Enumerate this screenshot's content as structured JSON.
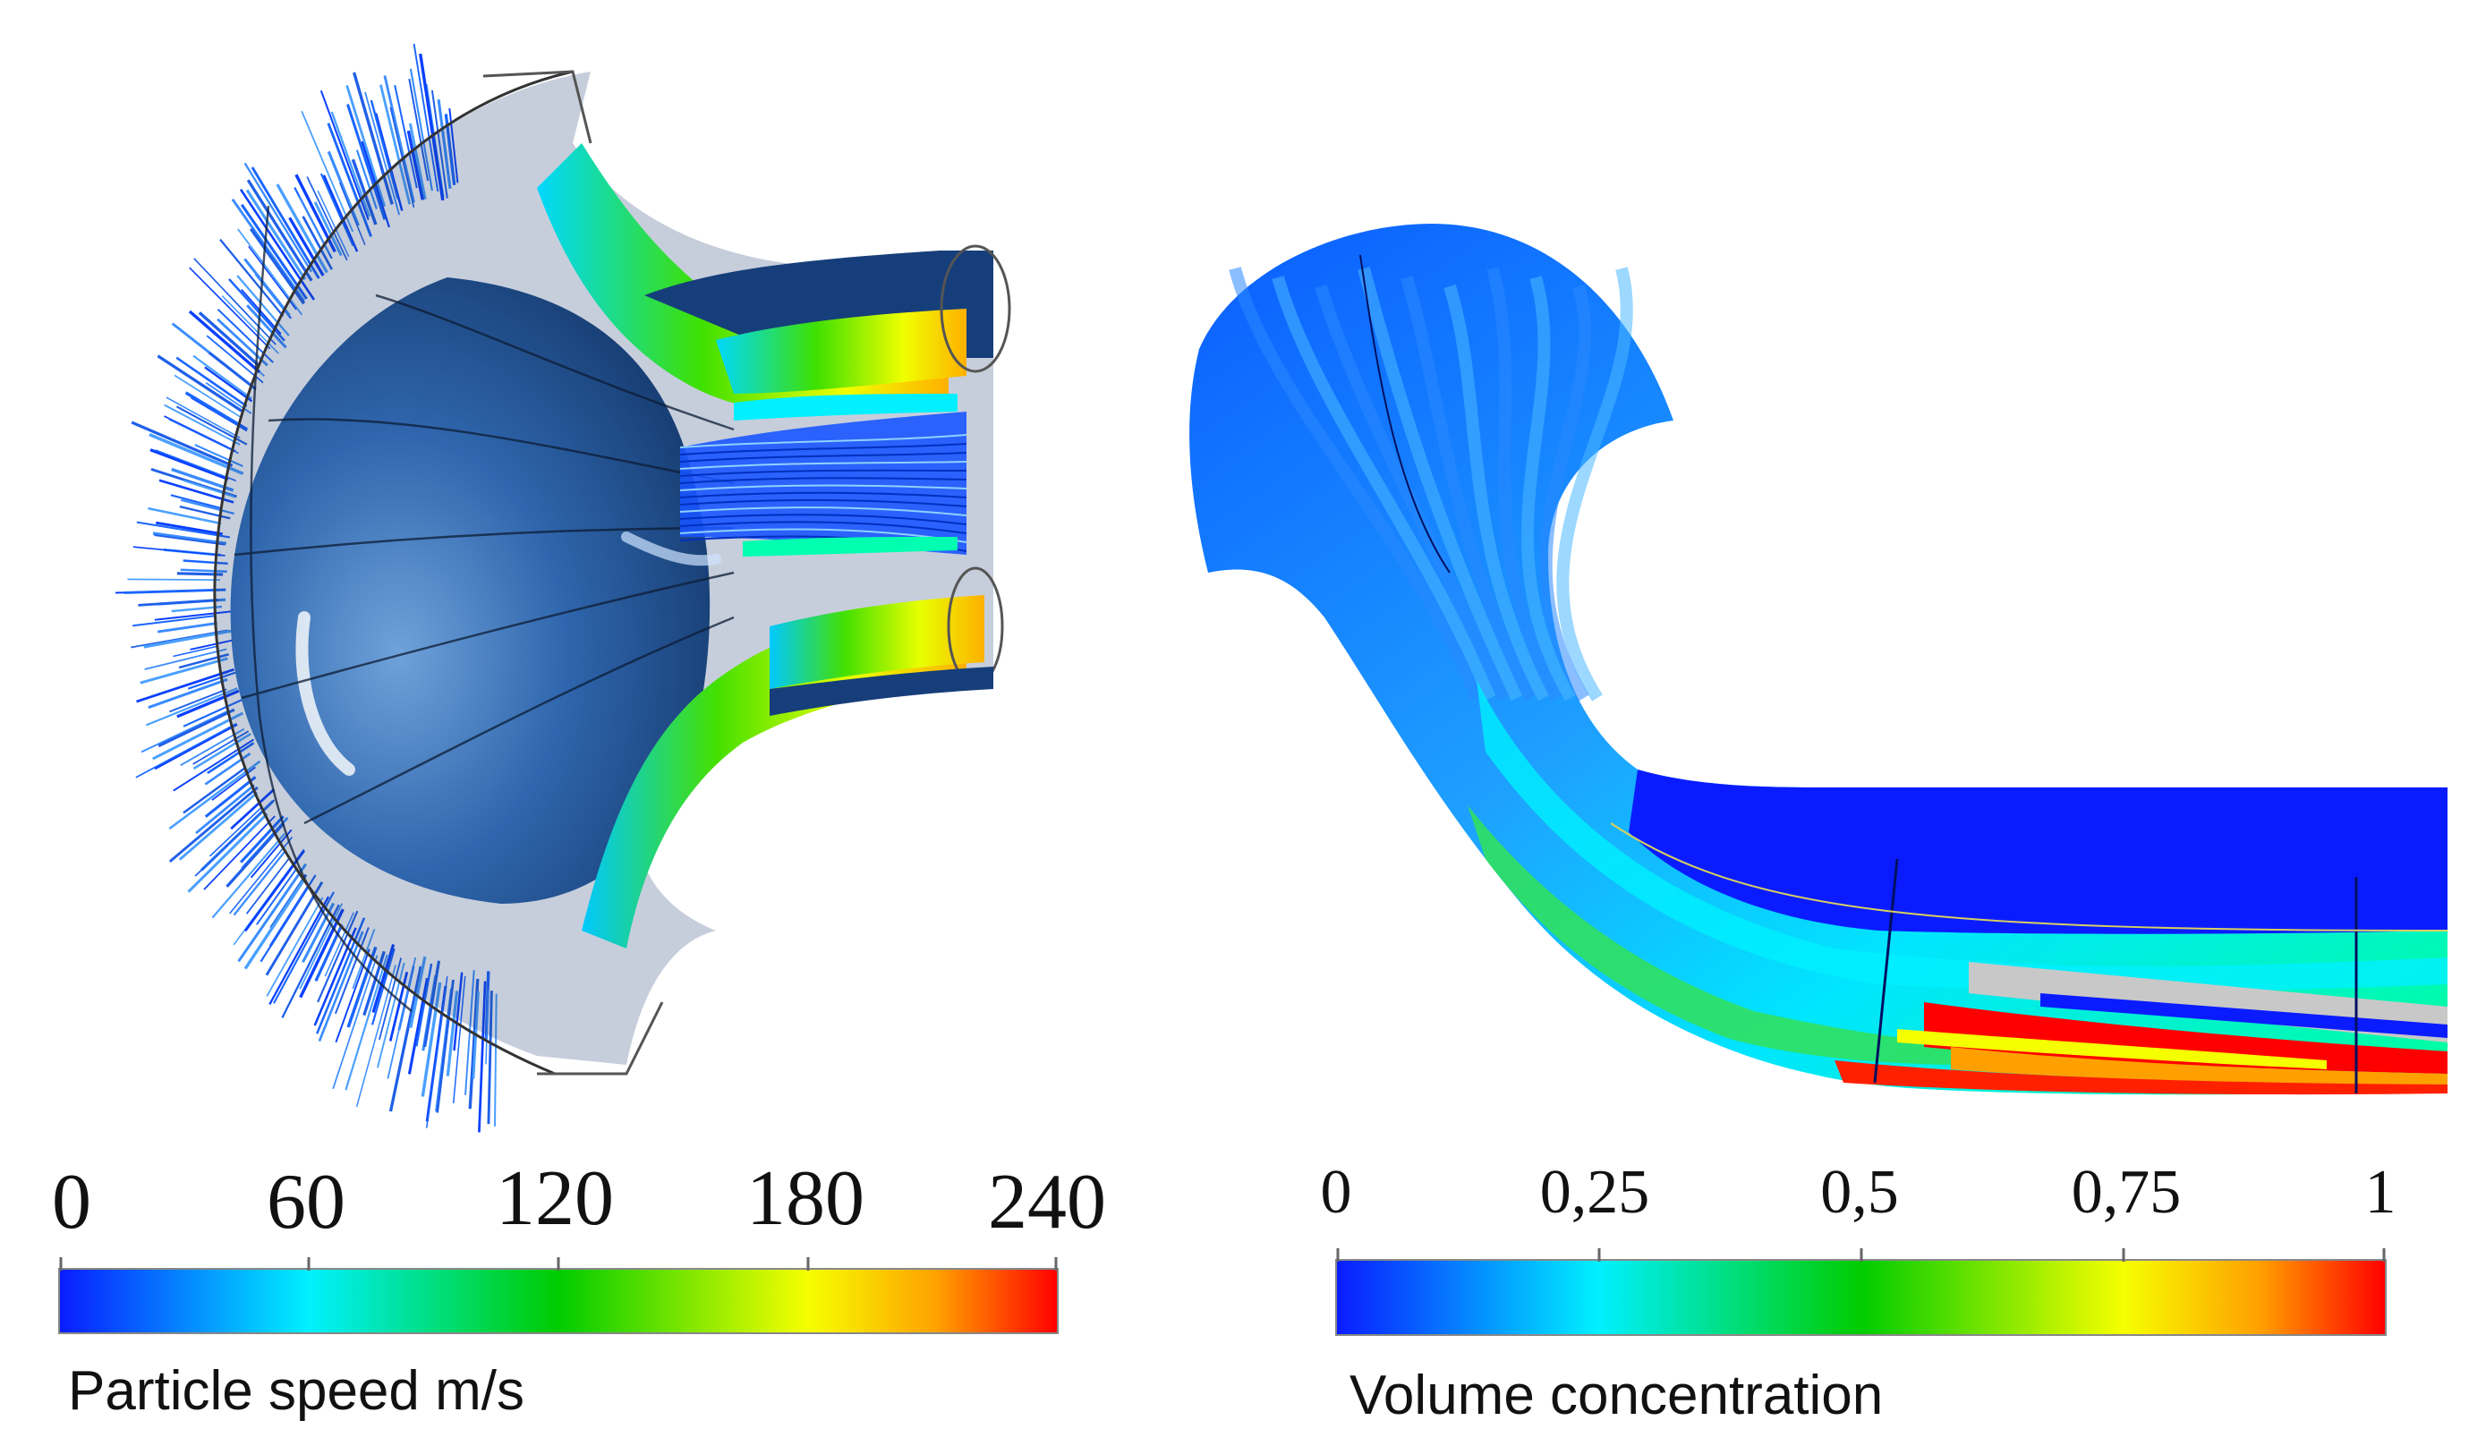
{
  "colors": {
    "blue": "#0a1cff",
    "cyan": "#00f0ff",
    "green": "#00cc00",
    "yellow": "#f6ff00",
    "orange": "#ffa000",
    "red": "#ff0000",
    "wall": "#2a5da0",
    "grey": "#c8c8c8"
  },
  "left_panel": {
    "colorbar": {
      "ticks": [
        "0",
        "60",
        "120",
        "180",
        "240"
      ],
      "caption": "Particle speed m/s"
    }
  },
  "right_panel": {
    "colorbar": {
      "ticks": [
        "0",
        "0,25",
        "0,5",
        "0,75",
        "1"
      ],
      "caption": "Volume concentration"
    }
  }
}
